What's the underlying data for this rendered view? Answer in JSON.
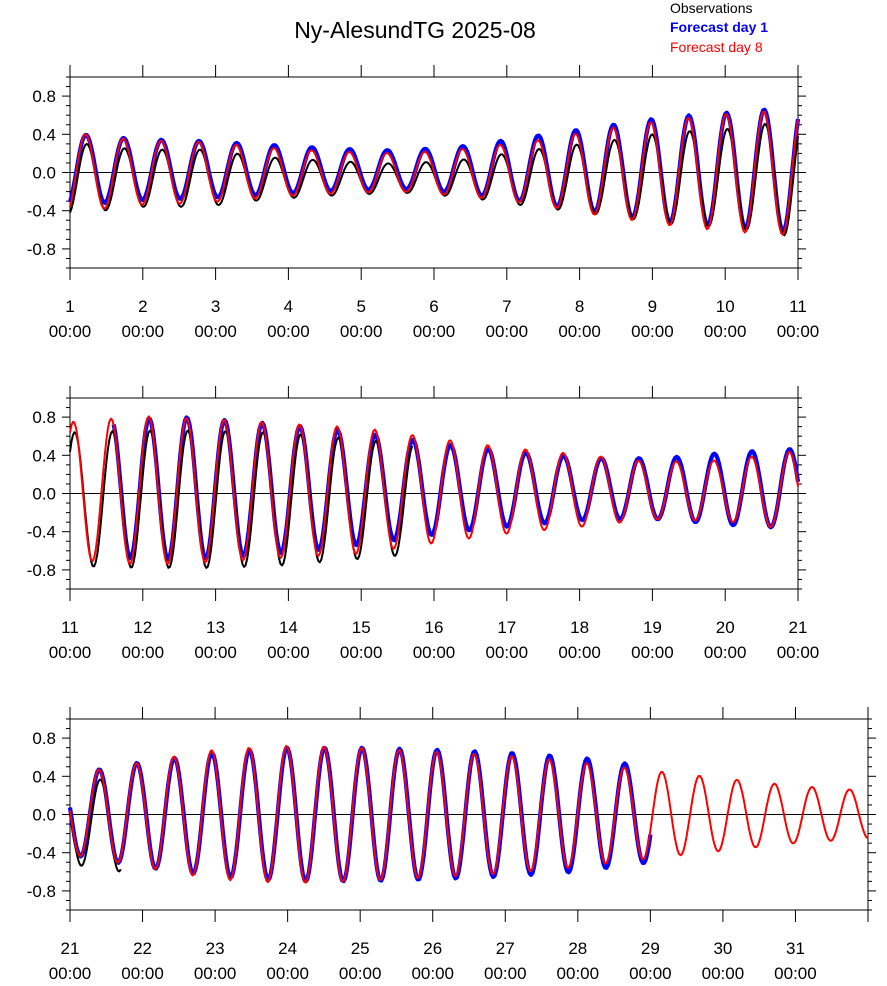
{
  "chart_data": {
    "type": "line",
    "title": "Ny-AlesundTG 2025-08",
    "legend": {
      "placement": "top-right",
      "entries": [
        {
          "label": "Observations",
          "color": "#000000",
          "weight": "normal"
        },
        {
          "label": "Forecast day 1",
          "color": "#0000ff",
          "weight": "bold"
        },
        {
          "label": "Forecast day 8",
          "color": "#ff0000",
          "weight": "normal"
        }
      ]
    },
    "ylim": [
      -1.0,
      1.0
    ],
    "yticks": [
      "0.8",
      "0.4",
      "0.0",
      "-0.4",
      "-0.8"
    ],
    "grid": false,
    "zero_line": true,
    "panels": [
      {
        "xrange": [
          1,
          11
        ],
        "xtick_labels": [
          [
            "1",
            "00:00"
          ],
          [
            "2",
            "00:00"
          ],
          [
            "3",
            "00:00"
          ],
          [
            "4",
            "00:00"
          ],
          [
            "5",
            "00:00"
          ],
          [
            "6",
            "00:00"
          ],
          [
            "7",
            "00:00"
          ],
          [
            "8",
            "00:00"
          ],
          [
            "9",
            "00:00"
          ],
          [
            "10",
            "00:00"
          ],
          [
            "11",
            "00:00"
          ]
        ],
        "obs": {
          "range": [
            1,
            11
          ],
          "amp": [
            0.38,
            0.3,
            0.3,
            0.22,
            0.18,
            0.15,
            0.2,
            0.3,
            0.38,
            0.48,
            0.52,
            0.62
          ],
          "mean": -0.06
        },
        "fc1": {
          "range": [
            1,
            11
          ],
          "amp": [
            0.38,
            0.32,
            0.3,
            0.26,
            0.22,
            0.2,
            0.25,
            0.35,
            0.45,
            0.55,
            0.6,
            0.66
          ],
          "mean": 0.03
        },
        "fc8": {
          "range": [
            1,
            11
          ],
          "amp": [
            0.42,
            0.34,
            0.32,
            0.26,
            0.22,
            0.2,
            0.25,
            0.33,
            0.45,
            0.55,
            0.62,
            0.66
          ],
          "mean": 0.0
        }
      },
      {
        "xrange": [
          11,
          21
        ],
        "xtick_labels": [
          [
            "11",
            "00:00"
          ],
          [
            "12",
            "00:00"
          ],
          [
            "13",
            "00:00"
          ],
          [
            "14",
            "00:00"
          ],
          [
            "15",
            "00:00"
          ],
          [
            "16",
            "00:00"
          ],
          [
            "17",
            "00:00"
          ],
          [
            "18",
            "00:00"
          ],
          [
            "19",
            "00:00"
          ],
          [
            "20",
            "00:00"
          ],
          [
            "21",
            "00:00"
          ]
        ],
        "obs": {
          "range": [
            11,
            15.7
          ],
          "amp": [
            0.7,
            0.72,
            0.72,
            0.7,
            0.64,
            0.58
          ],
          "mean": -0.06
        },
        "fc1": {
          "range": [
            11.6,
            21
          ],
          "amp": [
            0.72,
            0.75,
            0.7,
            0.64,
            0.55,
            0.45,
            0.38,
            0.32,
            0.32,
            0.38,
            0.42
          ],
          "mean": 0.05
        },
        "fc8": {
          "range": [
            11,
            21
          ],
          "amp": [
            0.72,
            0.78,
            0.75,
            0.7,
            0.66,
            0.55,
            0.45,
            0.38,
            0.3,
            0.32,
            0.42
          ],
          "mean": 0.03
        }
      },
      {
        "xrange": [
          21,
          32
        ],
        "xtick_labels": [
          [
            "21",
            "00:00"
          ],
          [
            "22",
            "00:00"
          ],
          [
            "23",
            "00:00"
          ],
          [
            "24",
            "00:00"
          ],
          [
            "25",
            "00:00"
          ],
          [
            "26",
            "00:00"
          ],
          [
            "27",
            "00:00"
          ],
          [
            "28",
            "00:00"
          ],
          [
            "29",
            "00:00"
          ],
          [
            "30",
            "00:00"
          ],
          [
            "31",
            "00:00"
          ]
        ],
        "obs": {
          "range": [
            21,
            21.7
          ],
          "amp": [
            0.42,
            0.5
          ],
          "mean": -0.1
        },
        "fc1": {
          "range": [
            21,
            29
          ],
          "amp": [
            0.42,
            0.55,
            0.65,
            0.7,
            0.7,
            0.68,
            0.65,
            0.6,
            0.5
          ],
          "mean": 0.0
        },
        "fc8": {
          "range": [
            21,
            32
          ],
          "amp": [
            0.42,
            0.55,
            0.68,
            0.72,
            0.7,
            0.66,
            0.62,
            0.55,
            0.46,
            0.38,
            0.3,
            0.25
          ],
          "mean": 0.0
        }
      }
    ]
  }
}
